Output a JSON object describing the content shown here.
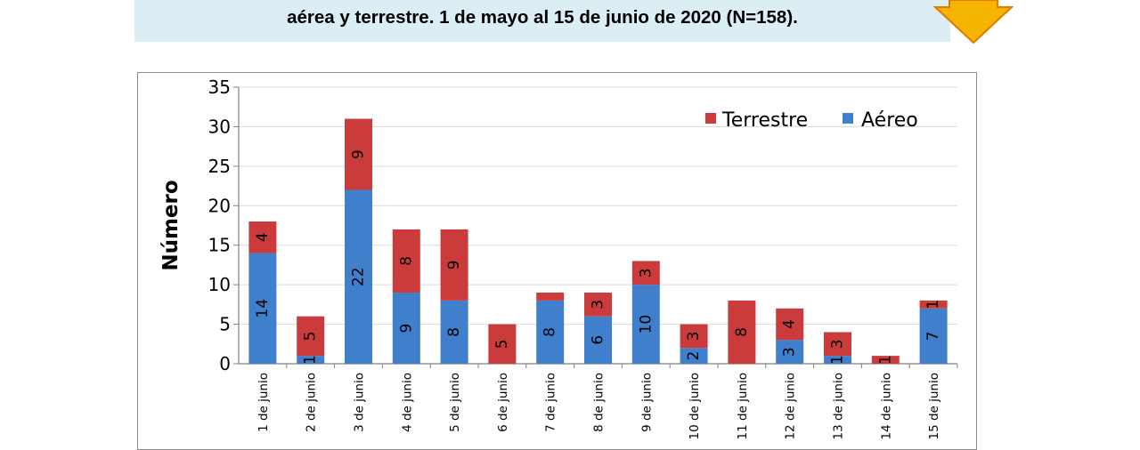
{
  "header": {
    "title_line": "aérea y terrestre. 1 de mayo al 15 de junio de 2020 (N=158)."
  },
  "colors": {
    "banner_bg": "#dbeef4",
    "arrow_fill": "#f5b400",
    "arrow_stroke": "#e07b00",
    "aereo": "#3f7fcc",
    "terrestre": "#cc3b3b"
  },
  "icons": {
    "arrow": "arrow-down-icon"
  },
  "chart_data": {
    "type": "bar",
    "stacked": true,
    "categories": [
      "1 de junio",
      "2 de junio",
      "3 de junio",
      "4 de junio",
      "5 de junio",
      "6 de junio",
      "7 de junio",
      "8 de junio",
      "9 de junio",
      "10 de junio",
      "11 de junio",
      "12 de junio",
      "13 de junio",
      "14 de junio",
      "15 de junio"
    ],
    "series": [
      {
        "name": "Aéreo",
        "values": [
          14,
          1,
          22,
          9,
          8,
          0,
          8,
          6,
          10,
          2,
          0,
          3,
          1,
          0,
          7
        ]
      },
      {
        "name": "Terrestre",
        "values": [
          4,
          5,
          9,
          8,
          9,
          5,
          1,
          3,
          3,
          3,
          8,
          4,
          3,
          1,
          1
        ]
      }
    ],
    "data_labels": {
      "Aéreo": [
        "14",
        "1",
        "22",
        "9",
        "8",
        "",
        "8",
        "6",
        "10",
        "2",
        "",
        "3",
        "1",
        "",
        ""
      ],
      "Terrestre": [
        "4",
        "5",
        "9",
        "8",
        "9",
        "5",
        "",
        "3",
        "3",
        "3",
        "8",
        "4",
        "3",
        "1",
        "1"
      ]
    },
    "extra_labels": [
      {
        "series": "Aéreo",
        "index": 14,
        "text": "7"
      }
    ],
    "ylabel": "Número",
    "xlabel": "",
    "ylim": [
      0,
      35
    ],
    "yticks": [
      0,
      5,
      10,
      15,
      20,
      25,
      30,
      35
    ],
    "grid": true,
    "legend": {
      "placement": "top-right",
      "order": [
        "Terrestre",
        "Aéreo"
      ]
    }
  }
}
